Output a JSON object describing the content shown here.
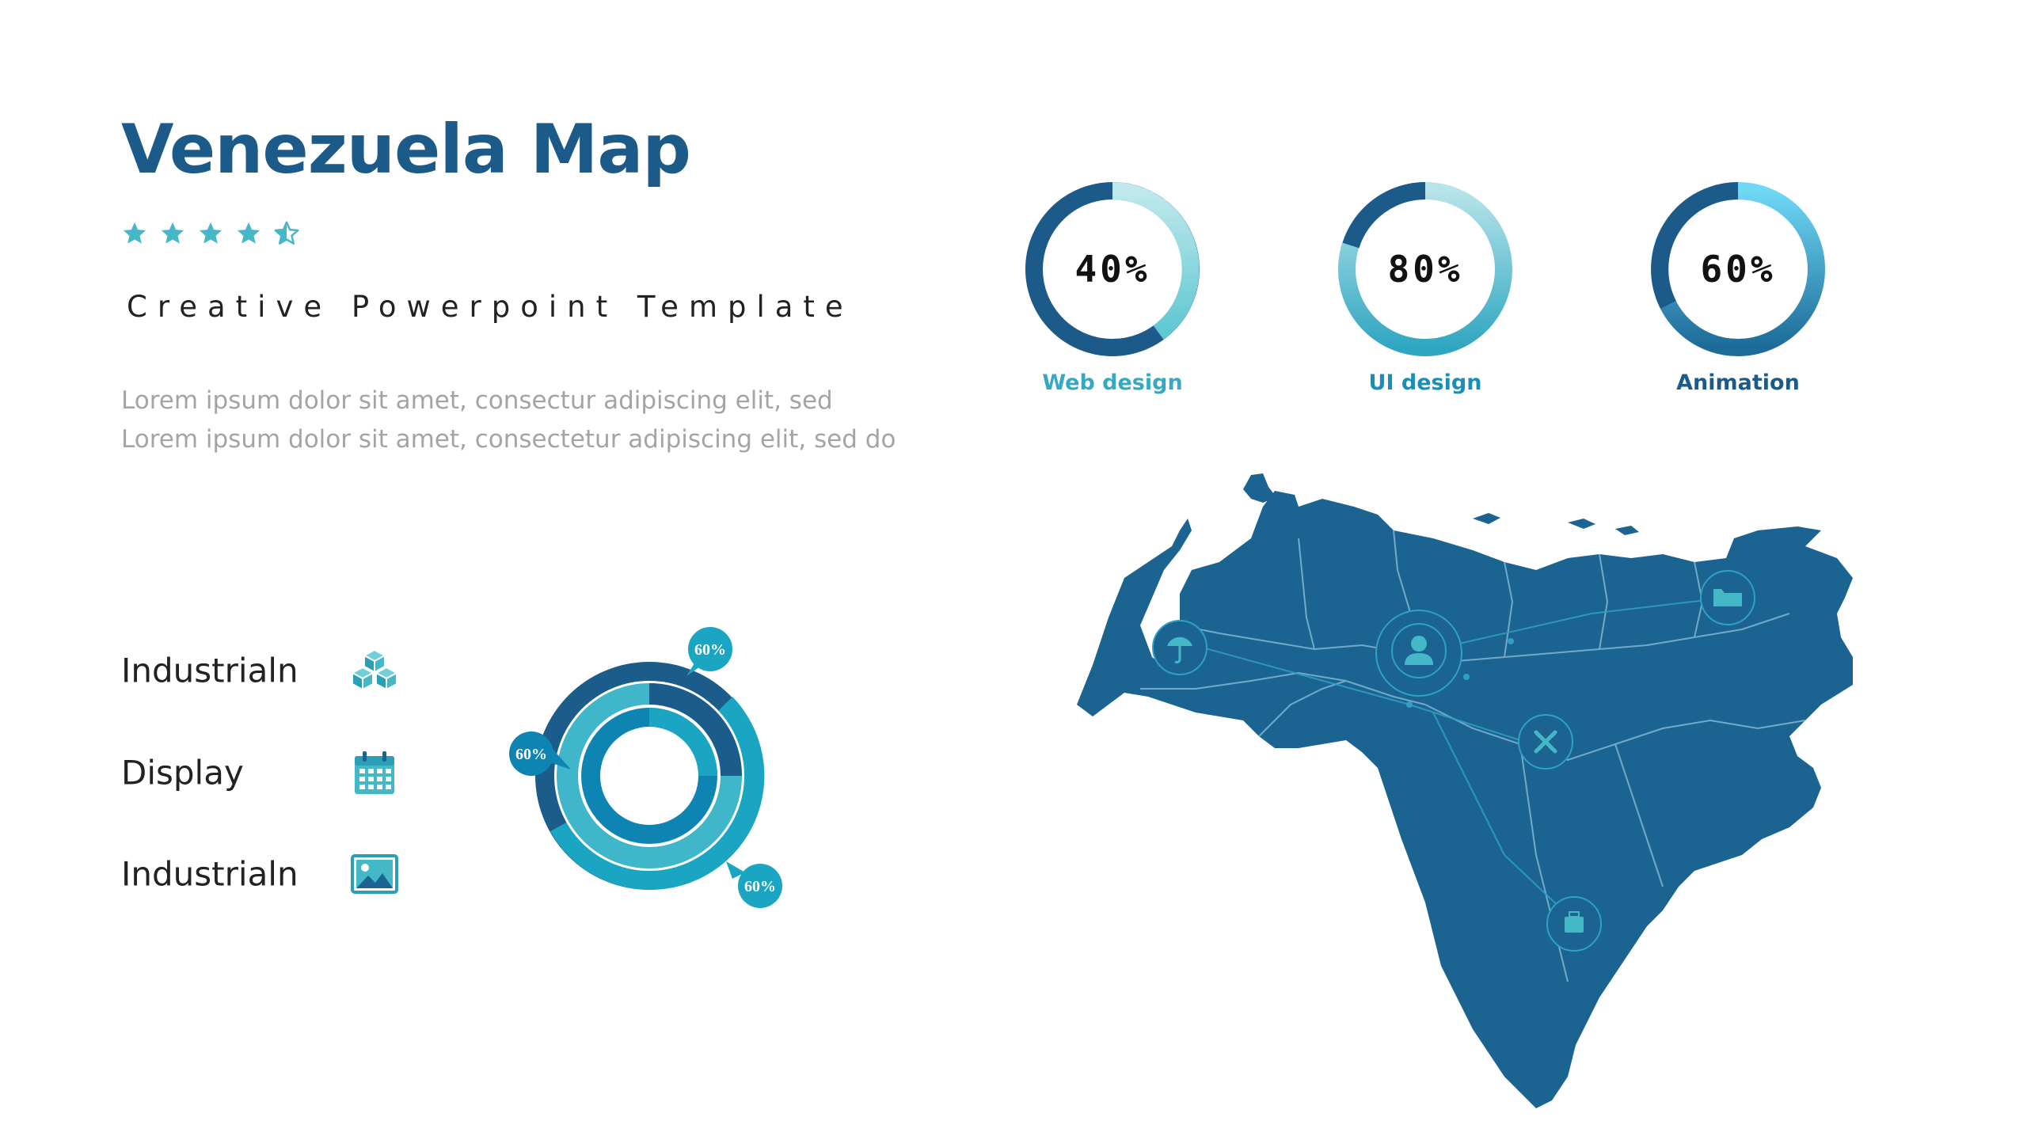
{
  "header": {
    "title": "Venezuela Map",
    "rating": {
      "value": 4.5,
      "max": 5
    },
    "subtitle": "Creative Powerpoint Template",
    "description": "Lorem ipsum dolor sit amet, consectur adipiscing elit, sed Lorem ipsum dolor sit amet, consectetur adipiscing elit, sed do"
  },
  "legend": [
    {
      "label": "Industrialn",
      "icon": "cubes-icon"
    },
    {
      "label": "Display",
      "icon": "calendar-icon"
    },
    {
      "label": "Industrialn",
      "icon": "image-icon"
    }
  ],
  "ring_chart": {
    "callouts": [
      "60%",
      "60%",
      "60%"
    ],
    "colors": {
      "outer": "#1aa6c2",
      "middle": "#3fb6c9",
      "inner": "#0e84b3",
      "dark": "#1b5c8a"
    }
  },
  "gauges": [
    {
      "value_label": "40%",
      "percent": 40,
      "label": "Web design",
      "label_color": "#35a9c0"
    },
    {
      "value_label": "80%",
      "percent": 80,
      "label": "UI design",
      "label_color": "#1a8fb6"
    },
    {
      "value_label": "60%",
      "percent": 60,
      "label": "Animation",
      "label_color": "#1c5a89"
    }
  ],
  "map": {
    "fill": "#1b6492",
    "markers": [
      "umbrella-icon",
      "user-icon",
      "folder-icon",
      "joomla-icon",
      "suitcase-icon"
    ]
  }
}
